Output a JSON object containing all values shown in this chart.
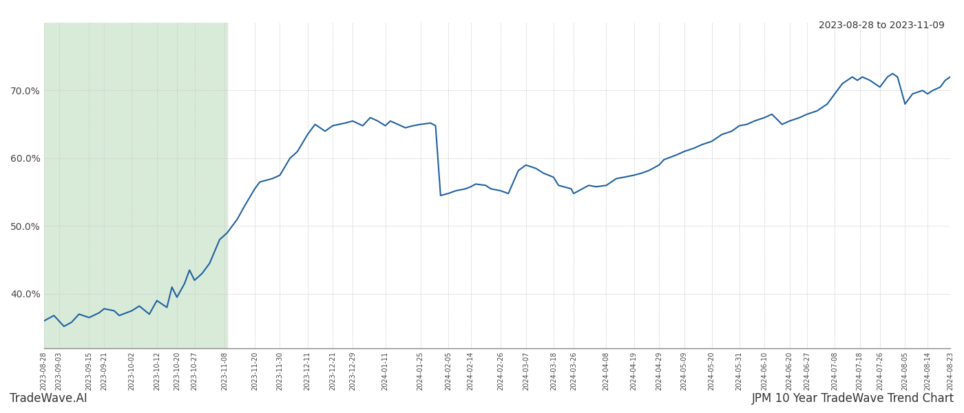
{
  "title_left": "TradeWave.AI",
  "title_right": "JPM 10 Year TradeWave Trend Chart",
  "date_range_label": "2023-08-28 to 2023-11-09",
  "shade_start": "2023-08-28",
  "shade_end": "2023-11-09",
  "line_color": "#2060a0",
  "shade_color": "#d8ead8",
  "background_color": "#ffffff",
  "grid_color": "#cccccc",
  "ylim": [
    0.32,
    0.8
  ],
  "yticks": [
    0.4,
    0.5,
    0.6,
    0.7
  ],
  "ytick_labels": [
    "40.0%",
    "50.0%",
    "60.0%",
    "70.0%"
  ],
  "line_width": 1.5,
  "dates": [
    "2023-08-28",
    "2023-09-01",
    "2023-09-05",
    "2023-09-08",
    "2023-09-11",
    "2023-09-15",
    "2023-09-19",
    "2023-09-21",
    "2023-09-25",
    "2023-09-27",
    "2023-10-02",
    "2023-10-05",
    "2023-10-09",
    "2023-10-12",
    "2023-10-16",
    "2023-10-18",
    "2023-10-20",
    "2023-10-23",
    "2023-10-25",
    "2023-10-27",
    "2023-10-30",
    "2023-11-02",
    "2023-11-06",
    "2023-11-09",
    "2023-11-13",
    "2023-11-16",
    "2023-11-20",
    "2023-11-22",
    "2023-11-27",
    "2023-11-30",
    "2023-12-04",
    "2023-12-07",
    "2023-12-11",
    "2023-12-14",
    "2023-12-18",
    "2023-12-21",
    "2023-12-26",
    "2023-12-29",
    "2024-01-02",
    "2024-01-05",
    "2024-01-08",
    "2024-01-11",
    "2024-01-13",
    "2024-01-16",
    "2024-01-19",
    "2024-01-22",
    "2024-01-25",
    "2024-01-29",
    "2024-01-31",
    "2024-02-02",
    "2024-02-05",
    "2024-02-08",
    "2024-02-12",
    "2024-02-14",
    "2024-02-16",
    "2024-02-20",
    "2024-02-22",
    "2024-02-26",
    "2024-02-29",
    "2024-03-04",
    "2024-03-07",
    "2024-03-11",
    "2024-03-14",
    "2024-03-18",
    "2024-03-20",
    "2024-03-25",
    "2024-03-26",
    "2024-04-01",
    "2024-04-04",
    "2024-04-08",
    "2024-04-10",
    "2024-04-12",
    "2024-04-15",
    "2024-04-19",
    "2024-04-22",
    "2024-04-25",
    "2024-04-29",
    "2024-05-01",
    "2024-05-06",
    "2024-05-09",
    "2024-05-13",
    "2024-05-16",
    "2024-05-20",
    "2024-05-22",
    "2024-05-24",
    "2024-05-28",
    "2024-05-31",
    "2024-06-03",
    "2024-06-06",
    "2024-06-10",
    "2024-06-13",
    "2024-06-17",
    "2024-06-20",
    "2024-06-24",
    "2024-06-27",
    "2024-07-01",
    "2024-07-05",
    "2024-07-08",
    "2024-07-11",
    "2024-07-15",
    "2024-07-17",
    "2024-07-19",
    "2024-07-22",
    "2024-07-24",
    "2024-07-26",
    "2024-07-29",
    "2024-07-31",
    "2024-08-02",
    "2024-08-05",
    "2024-08-08",
    "2024-08-12",
    "2024-08-14",
    "2024-08-16",
    "2024-08-19",
    "2024-08-21",
    "2024-08-23"
  ],
  "values": [
    0.36,
    0.368,
    0.352,
    0.358,
    0.37,
    0.365,
    0.372,
    0.378,
    0.375,
    0.368,
    0.375,
    0.382,
    0.37,
    0.39,
    0.38,
    0.41,
    0.395,
    0.415,
    0.435,
    0.42,
    0.43,
    0.445,
    0.48,
    0.49,
    0.51,
    0.53,
    0.555,
    0.565,
    0.57,
    0.575,
    0.6,
    0.61,
    0.635,
    0.65,
    0.64,
    0.648,
    0.652,
    0.655,
    0.648,
    0.66,
    0.655,
    0.648,
    0.655,
    0.65,
    0.645,
    0.648,
    0.65,
    0.652,
    0.648,
    0.545,
    0.548,
    0.552,
    0.555,
    0.558,
    0.562,
    0.56,
    0.555,
    0.552,
    0.548,
    0.582,
    0.59,
    0.585,
    0.578,
    0.572,
    0.56,
    0.555,
    0.548,
    0.56,
    0.558,
    0.56,
    0.565,
    0.57,
    0.572,
    0.575,
    0.578,
    0.582,
    0.59,
    0.598,
    0.605,
    0.61,
    0.615,
    0.62,
    0.625,
    0.63,
    0.635,
    0.64,
    0.648,
    0.65,
    0.655,
    0.66,
    0.665,
    0.65,
    0.655,
    0.66,
    0.665,
    0.67,
    0.68,
    0.695,
    0.71,
    0.72,
    0.715,
    0.72,
    0.715,
    0.71,
    0.705,
    0.72,
    0.725,
    0.72,
    0.68,
    0.695,
    0.7,
    0.695,
    0.7,
    0.705,
    0.715,
    0.72
  ],
  "xtick_dates": [
    "2023-08-28",
    "2023-09-03",
    "2023-09-15",
    "2023-09-21",
    "2023-10-02",
    "2023-10-12",
    "2023-10-20",
    "2023-10-27",
    "2023-11-08",
    "2023-11-20",
    "2023-11-30",
    "2023-12-11",
    "2023-12-21",
    "2023-12-29",
    "2024-01-11",
    "2024-01-25",
    "2024-02-05",
    "2024-02-14",
    "2024-02-26",
    "2024-03-07",
    "2024-03-18",
    "2024-03-26",
    "2024-04-08",
    "2024-04-19",
    "2024-04-29",
    "2024-05-09",
    "2024-05-20",
    "2024-05-31",
    "2024-06-10",
    "2024-06-20",
    "2024-06-27",
    "2024-07-08",
    "2024-07-18",
    "2024-07-26",
    "2024-08-05",
    "2024-08-14",
    "2024-08-23"
  ]
}
